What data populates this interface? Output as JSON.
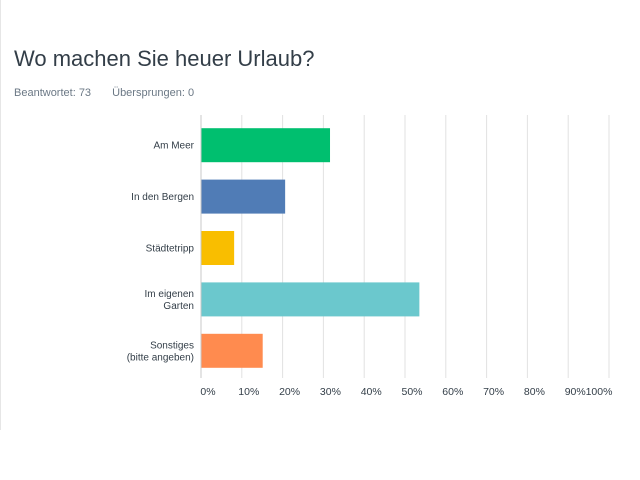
{
  "header": {
    "title": "Wo machen Sie heuer Urlaub?",
    "answered_label": "Beantwortet: 73",
    "skipped_label": "Übersprungen: 0"
  },
  "colors": {
    "grid": "#e2e2e2",
    "axis": "#c8c8c8",
    "text": "#333e48"
  },
  "chart_data": {
    "type": "bar",
    "orientation": "horizontal",
    "categories": [
      [
        "Am Meer"
      ],
      [
        "In den Bergen"
      ],
      [
        "Städtetripp"
      ],
      [
        "Im eigenen",
        "Garten"
      ],
      [
        "Sonstiges",
        "(bitte angeben)"
      ]
    ],
    "values": [
      31.5,
      20.5,
      8,
      53.4,
      15
    ],
    "colors": [
      "#00bf6f",
      "#507cb6",
      "#f9be00",
      "#6bc8cd",
      "#ff8b4f"
    ],
    "xlim": [
      0,
      100
    ],
    "xticks": [
      "0%",
      "10%",
      "20%",
      "30%",
      "40%",
      "50%",
      "60%",
      "70%",
      "80%",
      "90%",
      "100%"
    ],
    "grid": true,
    "legend": "none"
  }
}
